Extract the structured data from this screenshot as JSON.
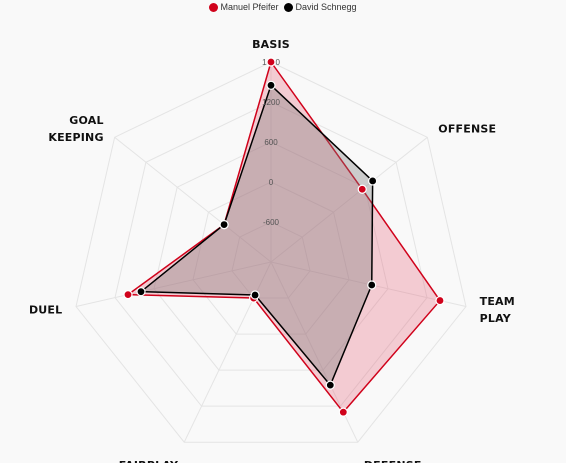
{
  "chart_data": {
    "type": "radar",
    "axes": [
      "BASIS",
      "OFFENSE",
      "TEAM PLAY",
      "DEFENSE",
      "FAIRPLAY",
      "DUEL",
      "GOAL KEEPING"
    ],
    "axis_label_lines": [
      [
        "BASIS"
      ],
      [
        "OFFENSE"
      ],
      [
        "TEAM",
        "PLAY"
      ],
      [
        "DEFENSE"
      ],
      [
        "FAIRPLAY"
      ],
      [
        "DUEL"
      ],
      [
        "GOAL",
        "KEEPING"
      ]
    ],
    "ticks": [
      -600,
      0,
      600,
      1200,
      1800
    ],
    "tick_labels": [
      "-600",
      "0",
      "600",
      "1200",
      "1800"
    ],
    "rmin": -1200,
    "rmax": 1800,
    "grid": true,
    "legend": "top-center",
    "series": [
      {
        "name": "Manuel Pfeifer",
        "color": "#d0021b",
        "fill": "rgba(226,68,96,0.25)",
        "values": [
          1800,
          550,
          1400,
          1300,
          -600,
          1000,
          -300
        ]
      },
      {
        "name": "David Schnegg",
        "color": "#000000",
        "fill": "rgba(120,120,120,0.35)",
        "values": [
          1450,
          750,
          350,
          850,
          -650,
          800,
          -300
        ]
      }
    ]
  }
}
